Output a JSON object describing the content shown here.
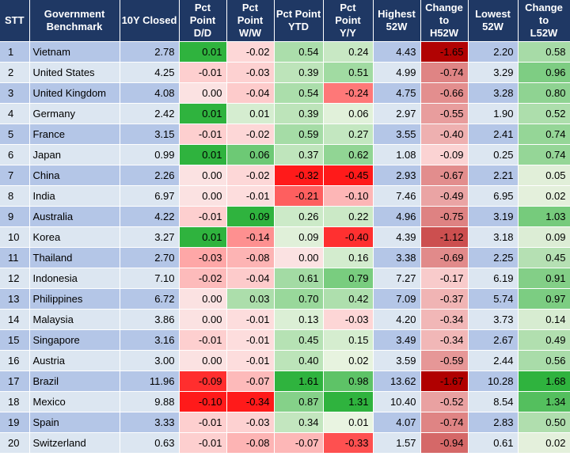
{
  "columns": [
    [
      "STT"
    ],
    [
      "Government",
      "Benchmark"
    ],
    [
      "10Y Closed"
    ],
    [
      "Pct",
      "Point",
      "D/D"
    ],
    [
      "Pct",
      "Point",
      "W/W"
    ],
    [
      "Pct Point",
      "YTD"
    ],
    [
      "Pct",
      "Point",
      "Y/Y"
    ],
    [
      "Highest",
      "52W"
    ],
    [
      "Change",
      "to",
      "H52W"
    ],
    [
      "Lowest",
      "52W"
    ],
    [
      "Change",
      "to",
      "L52W"
    ]
  ],
  "rows": [
    [
      "1",
      "Vietnam",
      "2.78",
      "0.01",
      "-0.02",
      "0.54",
      "0.24",
      "4.43",
      "-1.65",
      "2.20",
      "0.58"
    ],
    [
      "2",
      "United States",
      "4.25",
      "-0.01",
      "-0.03",
      "0.39",
      "0.51",
      "4.99",
      "-0.74",
      "3.29",
      "0.96"
    ],
    [
      "3",
      "United Kingdom",
      "4.08",
      "0.00",
      "-0.04",
      "0.54",
      "-0.24",
      "4.75",
      "-0.66",
      "3.28",
      "0.80"
    ],
    [
      "4",
      "Germany",
      "2.42",
      "0.01",
      "0.01",
      "0.39",
      "0.06",
      "2.97",
      "-0.55",
      "1.90",
      "0.52"
    ],
    [
      "5",
      "France",
      "3.15",
      "-0.01",
      "-0.02",
      "0.59",
      "0.27",
      "3.55",
      "-0.40",
      "2.41",
      "0.74"
    ],
    [
      "6",
      "Japan",
      "0.99",
      "0.01",
      "0.06",
      "0.37",
      "0.62",
      "1.08",
      "-0.09",
      "0.25",
      "0.74"
    ],
    [
      "7",
      "China",
      "2.26",
      "0.00",
      "-0.02",
      "-0.32",
      "-0.45",
      "2.93",
      "-0.67",
      "2.21",
      "0.05"
    ],
    [
      "8",
      "India",
      "6.97",
      "0.00",
      "-0.01",
      "-0.21",
      "-0.10",
      "7.46",
      "-0.49",
      "6.95",
      "0.02"
    ],
    [
      "9",
      "Australia",
      "4.22",
      "-0.01",
      "0.09",
      "0.26",
      "0.22",
      "4.96",
      "-0.75",
      "3.19",
      "1.03"
    ],
    [
      "10",
      "Korea",
      "3.27",
      "0.01",
      "-0.14",
      "0.09",
      "-0.40",
      "4.39",
      "-1.12",
      "3.18",
      "0.09"
    ],
    [
      "11",
      "Thailand",
      "2.70",
      "-0.03",
      "-0.08",
      "0.00",
      "0.16",
      "3.38",
      "-0.69",
      "2.25",
      "0.45"
    ],
    [
      "12",
      "Indonesia",
      "7.10",
      "-0.02",
      "-0.04",
      "0.61",
      "0.79",
      "7.27",
      "-0.17",
      "6.19",
      "0.91"
    ],
    [
      "13",
      "Philippines",
      "6.72",
      "0.00",
      "0.03",
      "0.70",
      "0.42",
      "7.09",
      "-0.37",
      "5.74",
      "0.97"
    ],
    [
      "14",
      "Malaysia",
      "3.86",
      "0.00",
      "-0.01",
      "0.13",
      "-0.03",
      "4.20",
      "-0.34",
      "3.73",
      "0.14"
    ],
    [
      "15",
      "Singapore",
      "3.16",
      "-0.01",
      "-0.01",
      "0.45",
      "0.15",
      "3.49",
      "-0.34",
      "2.67",
      "0.49"
    ],
    [
      "16",
      "Austria",
      "3.00",
      "0.00",
      "-0.01",
      "0.40",
      "0.02",
      "3.59",
      "-0.59",
      "2.44",
      "0.56"
    ],
    [
      "17",
      "Brazil",
      "11.96",
      "-0.09",
      "-0.07",
      "1.61",
      "0.98",
      "13.62",
      "-1.67",
      "10.28",
      "1.68"
    ],
    [
      "18",
      "Mexico",
      "9.88",
      "-0.10",
      "-0.34",
      "0.87",
      "1.31",
      "10.40",
      "-0.52",
      "8.54",
      "1.34"
    ],
    [
      "19",
      "Spain",
      "3.33",
      "-0.01",
      "-0.03",
      "0.34",
      "0.01",
      "4.07",
      "-0.74",
      "2.83",
      "0.50"
    ],
    [
      "20",
      "Switzerland",
      "0.63",
      "-0.01",
      "-0.08",
      "-0.07",
      "-0.33",
      "1.57",
      "-0.94",
      "0.61",
      "0.02"
    ]
  ],
  "heat_colors": {
    "neutral_light": "#dce6f1",
    "neutral_dark": "#b4c6e7",
    "green_strong": "#33b34a",
    "red_strong": "#e0201e"
  }
}
